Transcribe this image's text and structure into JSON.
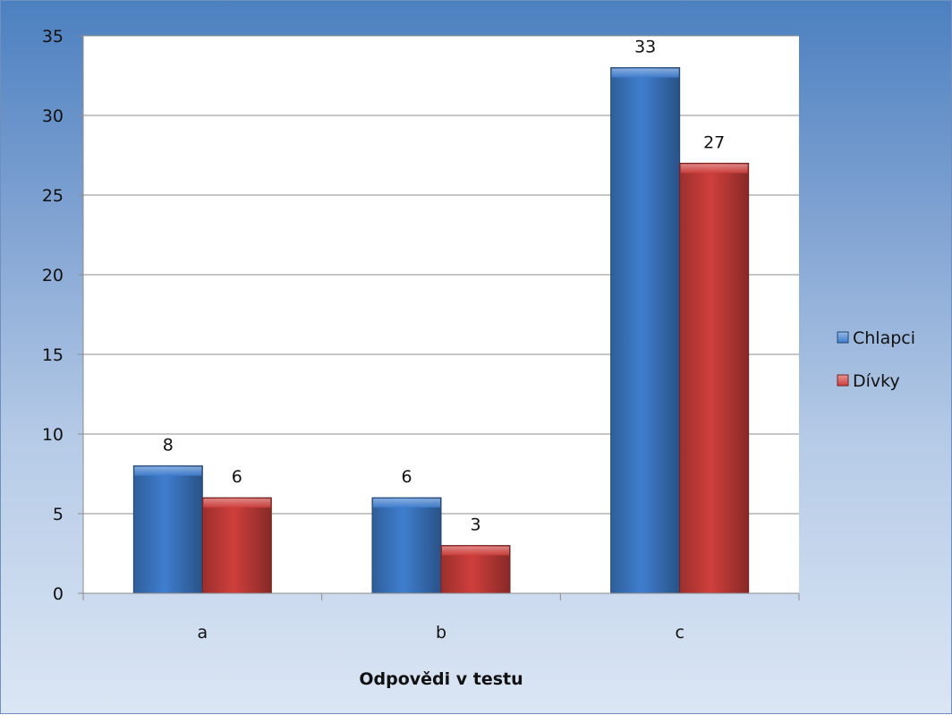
{
  "chart_data": {
    "type": "bar",
    "categories": [
      "a",
      "b",
      "c"
    ],
    "series": [
      {
        "name": "Chlapci",
        "values": [
          8,
          6,
          33
        ],
        "color": "#3f7ecf"
      },
      {
        "name": "Dívky",
        "values": [
          6,
          3,
          27
        ],
        "color": "#cf3f3c"
      }
    ],
    "title": "",
    "xlabel": "Odpovědi v testu",
    "ylabel": "",
    "ylim": [
      0,
      35
    ],
    "yticks": [
      0,
      5,
      10,
      15,
      20,
      25,
      30,
      35
    ],
    "grid": true,
    "legend": "right",
    "data_labels": true,
    "style": "3d-bevel"
  }
}
